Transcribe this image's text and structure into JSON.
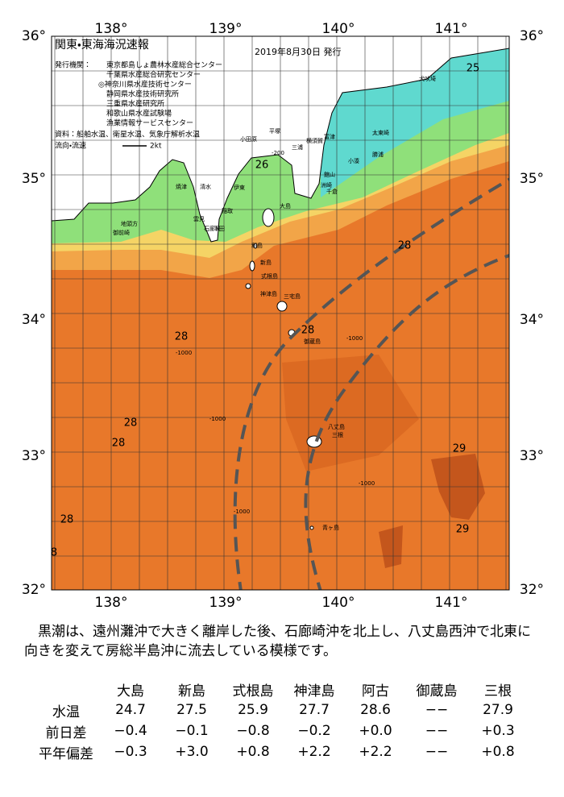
{
  "map": {
    "title": "関東・東海海況速報",
    "date": "2019年8月30日 発行",
    "issuer_label": "発行機関：",
    "issuers": [
      "東京都島しょ農林水産総合センター",
      "千葉県水産総合研究センター",
      "◎神奈川県水産技術センター",
      "静岡県水産技術研究所",
      "三重県水産研究所",
      "和歌山県水産試験場",
      "漁業情報サービスセンター"
    ],
    "source": "資料：船舶水温、衛星水温、気象庁解析水温",
    "current_label": "流向・流速",
    "current_scale": "2kt",
    "lon_labels": [
      "138°",
      "139°",
      "140°",
      "141°"
    ],
    "lat_labels": [
      "36°",
      "35°",
      "34°",
      "33°",
      "32°"
    ],
    "contour_labels": [
      "25",
      "26",
      "28",
      "28",
      "28",
      "28",
      "28",
      "28",
      "8",
      "29",
      "29"
    ],
    "depth_labels": [
      "-200",
      "-1000",
      "-1000",
      "-1000",
      "-1000",
      "-1000"
    ],
    "place_names": [
      "犬吠埼",
      "太東崎",
      "勝浦",
      "小湊",
      "洲崎",
      "館山",
      "千倉",
      "富津",
      "横須賀",
      "三浦",
      "平塚",
      "小田原",
      "伊東",
      "稲取",
      "下田",
      "石廊崎",
      "雲見",
      "清水",
      "焼津",
      "地頭方",
      "御前崎",
      "大島",
      "利島",
      "新島",
      "式根島",
      "神津島",
      "三宅島",
      "御蔵島",
      "八丈島",
      "三根",
      "青ヶ島"
    ]
  },
  "description": "黒潮は、遠州灘沖で大きく離岸した後、石廊崎沖を北上し、八丈島西沖で北東に向きを変えて房総半島沖に流去している模様です。",
  "table": {
    "columns": [
      "大島",
      "新島",
      "式根島",
      "神津島",
      "阿古",
      "御蔵島",
      "三根"
    ],
    "rows": [
      [
        "水温",
        "24.7",
        "27.5",
        "25.9",
        "27.7",
        "28.6",
        "−−",
        "27.9"
      ],
      [
        "前日差",
        "−0.4",
        "−0.1",
        "−0.8",
        "−0.2",
        "+0.0",
        "−−",
        "+0.3"
      ],
      [
        "平年偏差",
        "−0.3",
        "+3.0",
        "+0.8",
        "+2.2",
        "+2.2",
        "−−",
        "+0.8"
      ]
    ]
  }
}
